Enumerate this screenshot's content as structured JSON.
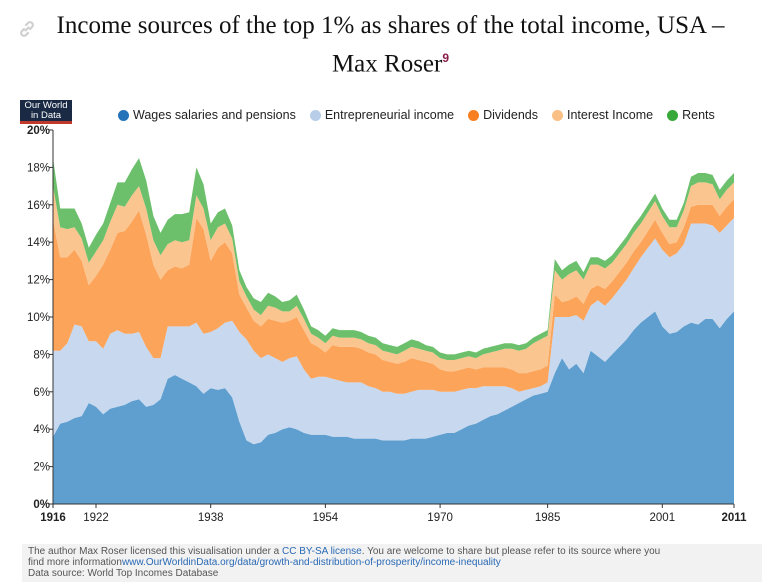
{
  "title": {
    "line1": "Income sources of the top 1% as shares of the total income, USA –",
    "line2": "Max Roser",
    "footnote_mark": "9"
  },
  "logo": {
    "line1": "Our World",
    "line2": "in Data"
  },
  "footer": {
    "line1_prefix": "The author Max Roser licensed this visualisation under a ",
    "license_link": "CC BY-SA license",
    "line1_suffix": ". You are welcome to share but please refer to its source where you",
    "line2_prefix": "find more information",
    "info_link": "www.OurWorldinData.org/data/growth-and-distribution-of-prosperity/income-inequality",
    "source": "Data source: World Top Incomes Database"
  },
  "colors": {
    "wages": "#5f9fcf",
    "entrepreneurial": "#c7d8ef",
    "dividends": "#fca45a",
    "interest": "#fbc58f",
    "rents": "#6cc06c"
  },
  "chart_data": {
    "type": "area",
    "stacked": true,
    "xlim": [
      1916,
      2011
    ],
    "ylim": [
      0,
      20
    ],
    "y_ticks": [
      0,
      2,
      4,
      6,
      8,
      10,
      12,
      14,
      16,
      18,
      20
    ],
    "y_tick_labels": [
      "0%",
      "2%",
      "4%",
      "6%",
      "8%",
      "10%",
      "12%",
      "14%",
      "16%",
      "18%",
      "20%"
    ],
    "x_ticks": [
      1916,
      1922,
      1938,
      1954,
      1970,
      1985,
      2001,
      2011
    ],
    "x_tick_labels": [
      "1916",
      "1922",
      "1938",
      "1954",
      "1970",
      "1985",
      "2001",
      "2011"
    ],
    "legend_position": "top",
    "x": [
      1916,
      1917,
      1918,
      1919,
      1920,
      1921,
      1922,
      1923,
      1924,
      1925,
      1926,
      1927,
      1928,
      1929,
      1930,
      1931,
      1932,
      1933,
      1934,
      1935,
      1936,
      1937,
      1938,
      1939,
      1940,
      1941,
      1942,
      1943,
      1944,
      1945,
      1946,
      1947,
      1948,
      1949,
      1950,
      1951,
      1952,
      1953,
      1954,
      1955,
      1956,
      1957,
      1958,
      1959,
      1960,
      1961,
      1962,
      1963,
      1964,
      1965,
      1966,
      1967,
      1968,
      1969,
      1970,
      1971,
      1972,
      1973,
      1974,
      1975,
      1976,
      1977,
      1978,
      1979,
      1980,
      1981,
      1982,
      1983,
      1984,
      1985,
      1986,
      1987,
      1988,
      1989,
      1990,
      1991,
      1992,
      1993,
      1994,
      1995,
      1996,
      1997,
      1998,
      1999,
      2000,
      2001,
      2002,
      2003,
      2004,
      2005,
      2006,
      2007,
      2008,
      2009,
      2010,
      2011
    ],
    "series": [
      {
        "name": "Wages salaries and pensions",
        "values": [
          3.6,
          4.3,
          4.4,
          4.6,
          4.7,
          5.4,
          5.2,
          4.8,
          5.1,
          5.2,
          5.3,
          5.5,
          5.6,
          5.2,
          5.3,
          5.6,
          6.7,
          6.9,
          6.7,
          6.5,
          6.3,
          5.9,
          6.2,
          6.1,
          6.2,
          5.7,
          4.4,
          3.4,
          3.2,
          3.3,
          3.7,
          3.8,
          4.0,
          4.1,
          4.0,
          3.8,
          3.7,
          3.7,
          3.7,
          3.6,
          3.6,
          3.6,
          3.5,
          3.5,
          3.5,
          3.5,
          3.4,
          3.4,
          3.4,
          3.4,
          3.5,
          3.5,
          3.5,
          3.6,
          3.7,
          3.8,
          3.8,
          4.0,
          4.2,
          4.3,
          4.5,
          4.7,
          4.8,
          5.0,
          5.2,
          5.4,
          5.6,
          5.8,
          5.9,
          6.0,
          7.0,
          7.8,
          7.2,
          7.5,
          7.0,
          8.2,
          7.9,
          7.6,
          8.0,
          8.4,
          8.8,
          9.3,
          9.7,
          10.0,
          10.3,
          9.5,
          9.1,
          9.2,
          9.5,
          9.7,
          9.6,
          9.9,
          9.9,
          9.4,
          9.9,
          10.3
        ]
      },
      {
        "name": "Entrepreneurial income",
        "values": [
          4.6,
          3.9,
          4.2,
          5.0,
          4.8,
          3.3,
          3.5,
          3.5,
          4.0,
          4.1,
          3.8,
          3.6,
          3.6,
          3.2,
          2.5,
          2.2,
          2.8,
          2.6,
          2.8,
          3.0,
          3.4,
          3.2,
          3.0,
          3.3,
          3.5,
          4.1,
          4.8,
          5.4,
          5.0,
          4.5,
          4.3,
          4.0,
          3.6,
          3.7,
          3.9,
          3.4,
          3.0,
          3.1,
          3.1,
          3.1,
          3.0,
          2.9,
          3.0,
          3.0,
          2.8,
          2.7,
          2.6,
          2.6,
          2.5,
          2.5,
          2.5,
          2.6,
          2.6,
          2.5,
          2.3,
          2.2,
          2.2,
          2.1,
          2.0,
          1.9,
          1.8,
          1.6,
          1.5,
          1.3,
          1.0,
          0.6,
          0.5,
          0.4,
          0.4,
          0.5,
          3.0,
          2.2,
          2.8,
          2.6,
          2.8,
          2.4,
          3.0,
          3.0,
          3.0,
          3.1,
          3.2,
          3.3,
          3.5,
          3.7,
          3.9,
          4.1,
          4.1,
          4.2,
          4.4,
          5.3,
          5.4,
          5.1,
          5.0,
          5.1,
          5.0,
          5.0
        ]
      },
      {
        "name": "Dividends",
        "values": [
          7.0,
          5.0,
          4.6,
          4.0,
          3.5,
          3.0,
          3.5,
          4.5,
          4.5,
          5.2,
          5.5,
          6.0,
          6.5,
          6.0,
          5.0,
          4.2,
          3.0,
          3.2,
          3.1,
          3.3,
          5.6,
          5.6,
          3.8,
          4.3,
          4.3,
          3.6,
          2.0,
          1.7,
          1.6,
          1.7,
          1.9,
          2.0,
          2.1,
          2.0,
          2.1,
          2.1,
          1.9,
          1.6,
          1.3,
          1.8,
          1.8,
          1.9,
          1.9,
          1.8,
          1.8,
          1.8,
          1.7,
          1.6,
          1.6,
          1.7,
          1.8,
          1.6,
          1.5,
          1.4,
          1.2,
          1.1,
          1.1,
          1.1,
          1.1,
          1.0,
          1.0,
          1.0,
          1.0,
          1.0,
          1.0,
          1.0,
          0.9,
          0.9,
          0.9,
          0.9,
          1.2,
          0.8,
          0.9,
          1.0,
          0.9,
          0.9,
          0.8,
          0.9,
          0.9,
          0.9,
          0.9,
          0.9,
          0.8,
          0.9,
          1.0,
          0.9,
          0.7,
          0.6,
          0.9,
          0.9,
          1.0,
          1.0,
          1.1,
          0.9,
          1.0,
          1.0
        ]
      },
      {
        "name": "Interest Income",
        "values": [
          1.8,
          1.6,
          1.5,
          1.2,
          1.2,
          1.2,
          1.3,
          1.3,
          1.5,
          1.5,
          1.3,
          1.4,
          1.3,
          1.4,
          1.3,
          1.3,
          1.4,
          1.4,
          1.4,
          1.3,
          1.2,
          1.1,
          1.1,
          1.1,
          1.0,
          0.8,
          0.7,
          0.6,
          0.6,
          0.6,
          0.7,
          0.7,
          0.6,
          0.5,
          0.6,
          0.6,
          0.5,
          0.5,
          0.5,
          0.5,
          0.5,
          0.5,
          0.5,
          0.5,
          0.5,
          0.5,
          0.5,
          0.5,
          0.5,
          0.6,
          0.6,
          0.6,
          0.6,
          0.6,
          0.6,
          0.6,
          0.6,
          0.6,
          0.6,
          0.6,
          0.7,
          0.8,
          0.9,
          1.0,
          1.1,
          1.2,
          1.3,
          1.5,
          1.6,
          1.6,
          1.3,
          1.2,
          1.4,
          1.4,
          1.3,
          1.3,
          1.1,
          1.1,
          1.0,
          1.0,
          1.0,
          1.0,
          1.0,
          1.0,
          1.0,
          0.9,
          0.9,
          0.8,
          0.9,
          1.1,
          1.2,
          1.2,
          1.1,
          0.9,
          0.9,
          0.9
        ]
      },
      {
        "name": "Rents",
        "values": [
          1.5,
          1.0,
          1.1,
          1.0,
          0.8,
          0.8,
          0.9,
          0.9,
          1.0,
          1.2,
          1.3,
          1.4,
          1.5,
          1.5,
          1.3,
          1.2,
          1.3,
          1.4,
          1.5,
          1.5,
          1.5,
          1.3,
          0.9,
          0.8,
          0.8,
          0.7,
          0.6,
          0.5,
          0.6,
          0.7,
          0.7,
          0.6,
          0.5,
          0.6,
          0.6,
          0.5,
          0.4,
          0.4,
          0.4,
          0.4,
          0.4,
          0.4,
          0.4,
          0.4,
          0.4,
          0.4,
          0.4,
          0.4,
          0.4,
          0.4,
          0.4,
          0.4,
          0.3,
          0.3,
          0.3,
          0.3,
          0.3,
          0.3,
          0.3,
          0.3,
          0.3,
          0.3,
          0.3,
          0.3,
          0.3,
          0.3,
          0.3,
          0.3,
          0.3,
          0.3,
          0.6,
          0.5,
          0.5,
          0.5,
          0.4,
          0.4,
          0.4,
          0.4,
          0.4,
          0.4,
          0.4,
          0.4,
          0.4,
          0.4,
          0.4,
          0.4,
          0.4,
          0.4,
          0.4,
          0.5,
          0.5,
          0.5,
          0.5,
          0.5,
          0.5,
          0.5
        ]
      }
    ]
  }
}
